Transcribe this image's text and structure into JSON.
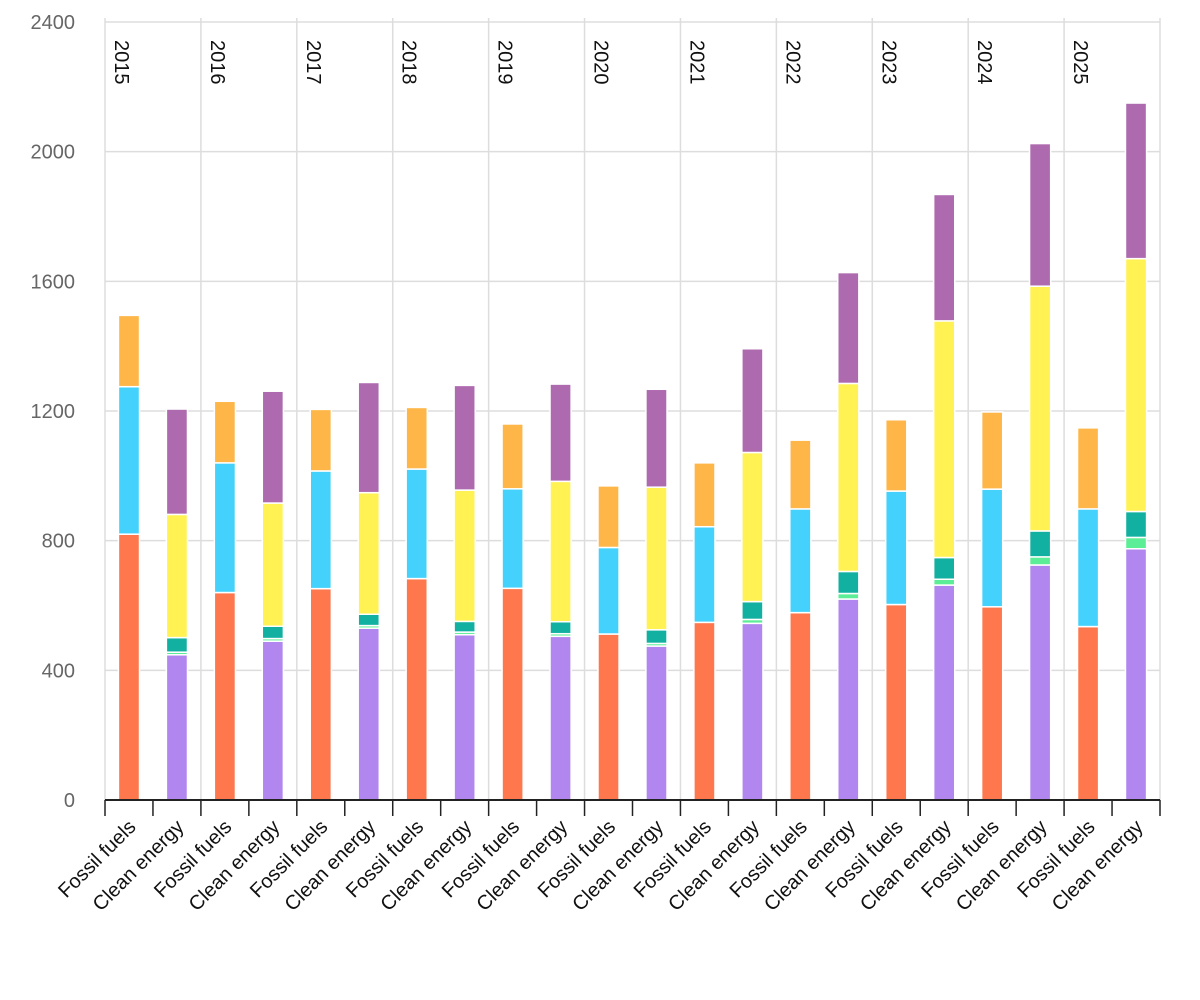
{
  "chart_data": {
    "type": "bar",
    "stacked": true,
    "title": "",
    "xlabel": "",
    "ylabel": "",
    "ylim": [
      0,
      2400
    ],
    "yticks": [
      0,
      400,
      800,
      1200,
      1600,
      2000,
      2400
    ],
    "grid": true,
    "groups": [
      "2015",
      "2016",
      "2017",
      "2018",
      "2019",
      "2020",
      "2021",
      "2022",
      "2023",
      "2024",
      "2025"
    ],
    "categories": [
      "Fossil fuels",
      "Clean energy"
    ],
    "bars": [
      {
        "year": "2015",
        "category": "Fossil fuels",
        "segments": [
          820,
          455,
          220
        ]
      },
      {
        "year": "2015",
        "category": "Clean energy",
        "segments": [
          448,
          8,
          45,
          380,
          325
        ]
      },
      {
        "year": "2016",
        "category": "Fossil fuels",
        "segments": [
          640,
          400,
          190
        ]
      },
      {
        "year": "2016",
        "category": "Clean energy",
        "segments": [
          490,
          8,
          38,
          380,
          345
        ]
      },
      {
        "year": "2017",
        "category": "Fossil fuels",
        "segments": [
          652,
          363,
          190
        ]
      },
      {
        "year": "2017",
        "category": "Clean energy",
        "segments": [
          530,
          8,
          35,
          375,
          340
        ]
      },
      {
        "year": "2018",
        "category": "Fossil fuels",
        "segments": [
          683,
          338,
          190
        ]
      },
      {
        "year": "2018",
        "category": "Clean energy",
        "segments": [
          510,
          8,
          33,
          405,
          323
        ]
      },
      {
        "year": "2019",
        "category": "Fossil fuels",
        "segments": [
          653,
          307,
          200
        ]
      },
      {
        "year": "2019",
        "category": "Clean energy",
        "segments": [
          505,
          8,
          37,
          433,
          300
        ]
      },
      {
        "year": "2020",
        "category": "Fossil fuels",
        "segments": [
          512,
          267,
          190
        ]
      },
      {
        "year": "2020",
        "category": "Clean energy",
        "segments": [
          475,
          8,
          42,
          440,
          302
        ]
      },
      {
        "year": "2021",
        "category": "Fossil fuels",
        "segments": [
          548,
          295,
          197
        ]
      },
      {
        "year": "2021",
        "category": "Clean energy",
        "segments": [
          545,
          12,
          55,
          460,
          320
        ]
      },
      {
        "year": "2022",
        "category": "Fossil fuels",
        "segments": [
          578,
          320,
          212
        ]
      },
      {
        "year": "2022",
        "category": "Clean energy",
        "segments": [
          620,
          17,
          68,
          580,
          342
        ]
      },
      {
        "year": "2023",
        "category": "Fossil fuels",
        "segments": [
          603,
          350,
          220
        ]
      },
      {
        "year": "2023",
        "category": "Clean energy",
        "segments": [
          663,
          18,
          67,
          730,
          390
        ]
      },
      {
        "year": "2024",
        "category": "Fossil fuels",
        "segments": [
          596,
          363,
          238
        ]
      },
      {
        "year": "2024",
        "category": "Clean energy",
        "segments": [
          725,
          25,
          80,
          755,
          440
        ]
      },
      {
        "year": "2025",
        "category": "Fossil fuels",
        "segments": [
          535,
          363,
          250
        ]
      },
      {
        "year": "2025",
        "category": "Clean energy",
        "segments": [
          775,
          35,
          80,
          780,
          480
        ]
      }
    ],
    "segment_colors": {
      "Fossil fuels": [
        "#ff774d",
        "#44d2fc",
        "#ffb648"
      ],
      "Clean energy": [
        "#b186ef",
        "#5bee96",
        "#12b0a0",
        "#fff252",
        "#ae6aaf"
      ]
    }
  }
}
